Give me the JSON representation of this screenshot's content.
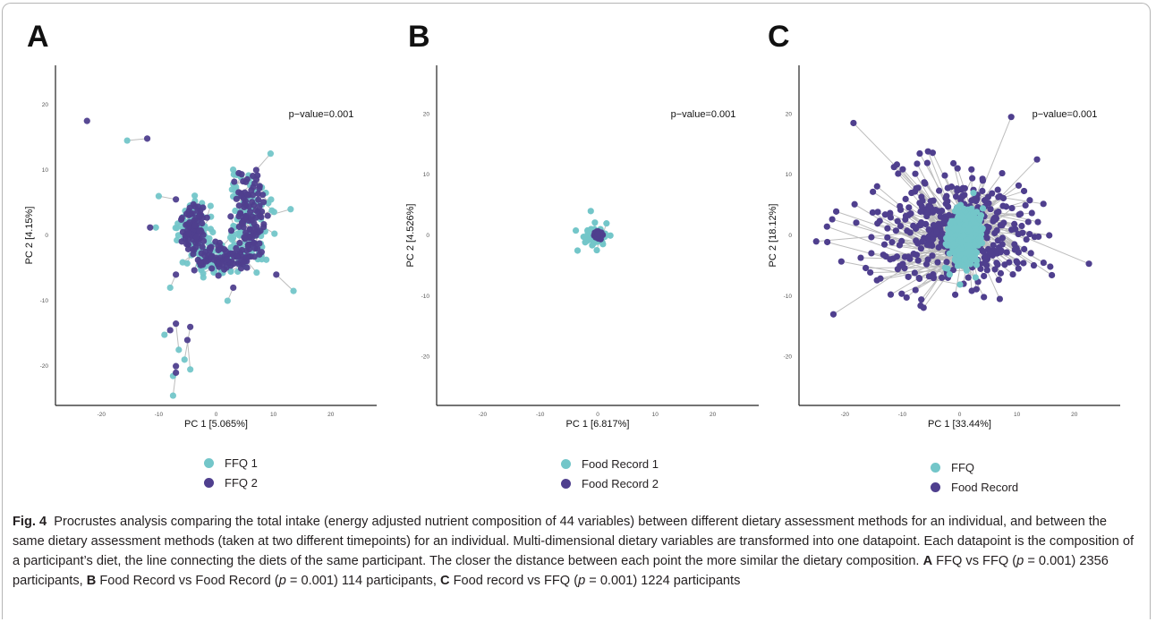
{
  "colors": {
    "series1": "#73c6c9",
    "series2": "#4f3f8e",
    "connector": "#bdbdbd"
  },
  "panels": [
    {
      "letter": "A",
      "annotation": "p−value=0.001",
      "xlabel": "PC 1 [5.065%]",
      "ylabel": "PC 2 [4.15%]",
      "legend": [
        "FFQ 1",
        "FFQ 2"
      ]
    },
    {
      "letter": "B",
      "annotation": "p−value=0.001",
      "xlabel": "PC 1 [6.817%]",
      "ylabel": "PC 2 [4.526%]",
      "legend": [
        "Food Record 1",
        "Food Record 2"
      ]
    },
    {
      "letter": "C",
      "annotation": "p−value=0.001",
      "xlabel": "PC 1 [33.44%]",
      "ylabel": "PC 2 [18.12%]",
      "legend": [
        "FFQ",
        "Food Record"
      ]
    }
  ],
  "chart_data": [
    {
      "type": "scatter",
      "panel": "A",
      "xlabel": "PC 1 [5.065%]",
      "ylabel": "PC 2 [4.15%]",
      "xticks": [
        "-20",
        "-10",
        "0",
        "10",
        "20"
      ],
      "yticks": [
        "20",
        "10",
        "0",
        "-10",
        "-20"
      ],
      "xlim": [
        -28,
        28
      ],
      "ylim": [
        -26,
        26
      ],
      "series": [
        {
          "name": "FFQ 1"
        },
        {
          "name": "FFQ 2"
        }
      ],
      "annotation": "p−value=0.001"
    },
    {
      "type": "scatter",
      "panel": "B",
      "xlabel": "PC 1 [6.817%]",
      "ylabel": "PC 2 [4.526%]",
      "xticks": [
        "-20",
        "-10",
        "0",
        "10",
        "20"
      ],
      "yticks": [
        "20",
        "10",
        "0",
        "-10",
        "-20"
      ],
      "xlim": [
        -28,
        28
      ],
      "ylim": [
        -28,
        28
      ],
      "series": [
        {
          "name": "Food Record 1"
        },
        {
          "name": "Food Record 2"
        }
      ],
      "annotation": "p−value=0.001"
    },
    {
      "type": "scatter",
      "panel": "C",
      "xlabel": "PC 1 [33.44%]",
      "ylabel": "PC 2 [18.12%]",
      "xticks": [
        "-20",
        "-10",
        "0",
        "10",
        "20"
      ],
      "yticks": [
        "20",
        "10",
        "0",
        "-10",
        "-20"
      ],
      "xlim": [
        -28,
        28
      ],
      "ylim": [
        -28,
        28
      ],
      "series": [
        {
          "name": "FFQ"
        },
        {
          "name": "Food Record"
        }
      ],
      "annotation": "p−value=0.001"
    }
  ],
  "caption": {
    "fig_label": "Fig. 4",
    "text1": "Procrustes analysis comparing the total intake (energy adjusted nutrient composition of 44 variables) between different dietary assessment methods for an individual, and between the same dietary assessment methods (taken at two different timepoints) for an individual. Multi-dimensional dietary variables are transformed into one datapoint. Each datapoint is the composition of a participant’s diet, the line connecting the diets of the same participant. The closer the distance between each point the more similar the dietary composition.",
    "a_label": "A",
    "a_text": "FFQ vs FFQ (",
    "p": "p",
    "a_stat": " = 0.001) 2356 participants,",
    "b_label": "B",
    "b_text": "Food Record vs Food Record (",
    "b_stat": " = 0.001) 114 participants,",
    "c_label": "C",
    "c_text": "Food record vs FFQ (",
    "c_stat": " = 0.001) 1224 participants"
  }
}
